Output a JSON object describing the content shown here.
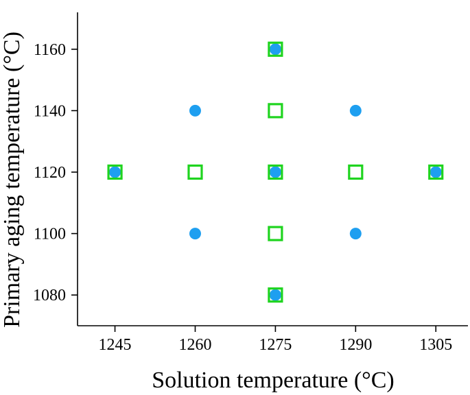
{
  "chart_data": {
    "type": "scatter",
    "xlabel": "Solution temperature (°C)",
    "ylabel": "Primary aging temperature (°C)",
    "xlim": [
      1238,
      1311
    ],
    "ylim": [
      1070,
      1172
    ],
    "x_ticks": [
      1245,
      1260,
      1275,
      1290,
      1305
    ],
    "y_ticks": [
      1080,
      1100,
      1120,
      1140,
      1160
    ],
    "x_tick_labels": [
      "1245",
      "1260",
      "1275",
      "1290",
      "1305"
    ],
    "y_tick_labels": [
      "1080",
      "1100",
      "1120",
      "1140",
      "1160"
    ],
    "grid": false,
    "series": [
      {
        "marker": "filled-circle",
        "color": "#1e9ff0",
        "points": [
          {
            "x": 1245,
            "y": 1120
          },
          {
            "x": 1260,
            "y": 1140
          },
          {
            "x": 1260,
            "y": 1100
          },
          {
            "x": 1275,
            "y": 1160
          },
          {
            "x": 1275,
            "y": 1120
          },
          {
            "x": 1275,
            "y": 1080
          },
          {
            "x": 1290,
            "y": 1140
          },
          {
            "x": 1290,
            "y": 1100
          },
          {
            "x": 1305,
            "y": 1120
          }
        ]
      },
      {
        "marker": "open-square",
        "color": "#1fd41f",
        "points": [
          {
            "x": 1245,
            "y": 1120
          },
          {
            "x": 1260,
            "y": 1120
          },
          {
            "x": 1275,
            "y": 1160
          },
          {
            "x": 1275,
            "y": 1140
          },
          {
            "x": 1275,
            "y": 1120
          },
          {
            "x": 1275,
            "y": 1100
          },
          {
            "x": 1275,
            "y": 1080
          },
          {
            "x": 1290,
            "y": 1120
          },
          {
            "x": 1305,
            "y": 1120
          }
        ]
      }
    ]
  }
}
